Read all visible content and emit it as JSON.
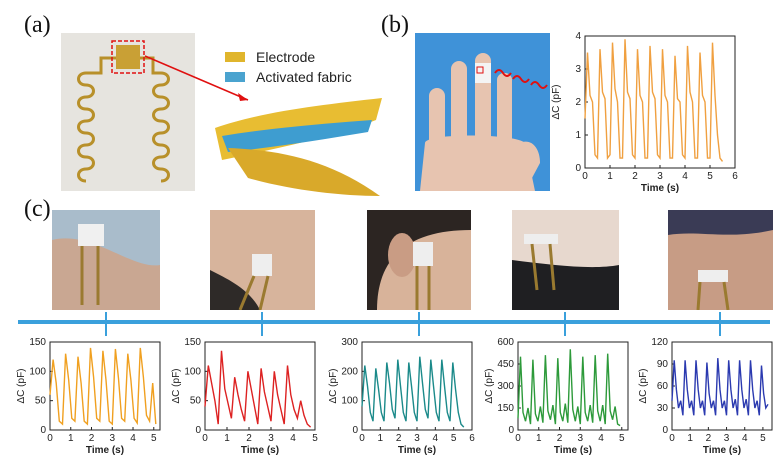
{
  "panels": {
    "a": "(a)",
    "b": "(b)",
    "c": "(c)"
  },
  "legend": {
    "electrode": "Electrode",
    "fabric": "Activated fabric"
  },
  "colors": {
    "electrode": "#e0b52c",
    "fabric": "#4aa3cf",
    "connector": "#3aa0dc",
    "trace_b": "#f0a040",
    "trace_c1": "#f0a020",
    "trace_c2": "#dd2222",
    "trace_c3": "#1b8a8a",
    "trace_c4": "#2d9a3a",
    "trace_c5": "#2b3ab0"
  },
  "chart_data": [
    {
      "id": "b",
      "type": "line",
      "ylabel": "ΔC (pF)",
      "xlabel": "Time (s)",
      "xlim": [
        0,
        6
      ],
      "ylim": [
        0,
        4
      ],
      "xticks": [
        "0",
        "1",
        "2",
        "3",
        "4",
        "5",
        "6"
      ],
      "yticks": [
        "0",
        "1",
        "2",
        "3",
        "4"
      ],
      "series": [
        {
          "color": "#f0a040",
          "x": [
            0,
            0.1,
            0.2,
            0.3,
            0.4,
            0.5,
            0.6,
            0.7,
            0.8,
            0.9,
            1.0,
            1.1,
            1.2,
            1.3,
            1.4,
            1.5,
            1.6,
            1.7,
            1.8,
            1.9,
            2.0,
            2.1,
            2.2,
            2.3,
            2.4,
            2.5,
            2.6,
            2.7,
            2.8,
            2.9,
            3.0,
            3.1,
            3.2,
            3.3,
            3.4,
            3.5,
            3.6,
            3.7,
            3.8,
            3.9,
            4.0,
            4.1,
            4.2,
            4.3,
            4.4,
            4.5,
            4.6,
            4.7,
            4.8,
            4.9,
            5.0,
            5.1,
            5.2,
            5.3,
            5.4,
            5.5
          ],
          "y": [
            1.5,
            3.5,
            2.2,
            2.0,
            0.4,
            0.3,
            3.6,
            2.3,
            2.1,
            0.3,
            0.4,
            3.8,
            2.4,
            2.0,
            0.3,
            0.3,
            3.9,
            2.3,
            2.1,
            0.4,
            0.3,
            3.6,
            2.2,
            2.0,
            0.3,
            0.3,
            3.7,
            2.3,
            2.1,
            0.4,
            0.3,
            3.6,
            2.2,
            2.0,
            0.3,
            0.3,
            3.4,
            2.1,
            2.0,
            0.4,
            0.3,
            3.7,
            2.3,
            2.0,
            0.3,
            0.3,
            3.5,
            2.2,
            2.0,
            0.3,
            0.3,
            3.8,
            2.2,
            1.0,
            0.3,
            0.2
          ]
        }
      ]
    },
    {
      "id": "c1",
      "type": "line",
      "ylabel": "ΔC (pF)",
      "xlabel": "Time (s)",
      "xlim": [
        0,
        5.3
      ],
      "ylim": [
        0,
        150
      ],
      "xticks": [
        "0",
        "1",
        "2",
        "3",
        "4",
        "5"
      ],
      "yticks": [
        "0",
        "50",
        "100",
        "150"
      ],
      "series": [
        {
          "color": "#f0a020",
          "x": [
            0,
            0.15,
            0.3,
            0.45,
            0.6,
            0.75,
            0.9,
            1.05,
            1.2,
            1.35,
            1.5,
            1.65,
            1.8,
            1.95,
            2.1,
            2.25,
            2.4,
            2.55,
            2.7,
            2.85,
            3.0,
            3.15,
            3.3,
            3.45,
            3.6,
            3.75,
            3.9,
            4.05,
            4.2,
            4.35,
            4.5,
            4.65,
            4.8,
            4.95,
            5.1
          ],
          "y": [
            60,
            120,
            80,
            15,
            10,
            130,
            85,
            20,
            15,
            125,
            80,
            15,
            10,
            140,
            90,
            20,
            15,
            135,
            85,
            15,
            10,
            138,
            88,
            20,
            15,
            130,
            85,
            20,
            12,
            140,
            90,
            25,
            15,
            80,
            10
          ]
        }
      ]
    },
    {
      "id": "c2",
      "type": "line",
      "ylabel": "ΔC (pF)",
      "xlabel": "Time (s)",
      "xlim": [
        0,
        5
      ],
      "ylim": [
        0,
        150
      ],
      "xticks": [
        "0",
        "1",
        "2",
        "3",
        "4",
        "5"
      ],
      "yticks": [
        "0",
        "50",
        "100",
        "150"
      ],
      "series": [
        {
          "color": "#dd2222",
          "x": [
            0,
            0.15,
            0.3,
            0.45,
            0.6,
            0.75,
            0.9,
            1.05,
            1.2,
            1.35,
            1.5,
            1.65,
            1.8,
            1.95,
            2.1,
            2.25,
            2.4,
            2.55,
            2.7,
            2.85,
            3.0,
            3.15,
            3.3,
            3.45,
            3.6,
            3.75,
            3.9,
            4.05,
            4.2,
            4.35,
            4.5,
            4.65,
            4.8
          ],
          "y": [
            40,
            110,
            80,
            50,
            10,
            135,
            70,
            45,
            20,
            90,
            60,
            35,
            15,
            100,
            70,
            40,
            10,
            105,
            65,
            40,
            15,
            100,
            60,
            35,
            10,
            110,
            60,
            35,
            20,
            50,
            25,
            10,
            5
          ]
        }
      ]
    },
    {
      "id": "c3",
      "type": "line",
      "ylabel": "ΔC (pF)",
      "xlabel": "Time (s)",
      "xlim": [
        0,
        6
      ],
      "ylim": [
        0,
        300
      ],
      "xticks": [
        "0",
        "1",
        "2",
        "3",
        "4",
        "5",
        "6"
      ],
      "yticks": [
        "0",
        "100",
        "200",
        "300"
      ],
      "series": [
        {
          "color": "#1b8a8a",
          "x": [
            0,
            0.15,
            0.3,
            0.45,
            0.6,
            0.75,
            0.9,
            1.05,
            1.2,
            1.35,
            1.5,
            1.65,
            1.8,
            1.95,
            2.1,
            2.25,
            2.4,
            2.55,
            2.7,
            2.85,
            3.0,
            3.15,
            3.3,
            3.45,
            3.6,
            3.75,
            3.9,
            4.05,
            4.2,
            4.35,
            4.5,
            4.65,
            4.8,
            4.95,
            5.1,
            5.25,
            5.4,
            5.55
          ],
          "y": [
            80,
            220,
            150,
            60,
            30,
            210,
            140,
            60,
            30,
            230,
            160,
            70,
            40,
            240,
            150,
            60,
            30,
            230,
            150,
            60,
            30,
            250,
            160,
            70,
            40,
            240,
            150,
            60,
            30,
            240,
            150,
            60,
            30,
            230,
            140,
            60,
            20,
            10
          ]
        }
      ]
    },
    {
      "id": "c4",
      "type": "line",
      "ylabel": "ΔC (pF)",
      "xlabel": "Time (s)",
      "xlim": [
        0,
        5.3
      ],
      "ylim": [
        0,
        600
      ],
      "xticks": [
        "0",
        "1",
        "2",
        "3",
        "4",
        "5"
      ],
      "yticks": [
        "0",
        "150",
        "300",
        "450",
        "600"
      ],
      "series": [
        {
          "color": "#2d9a3a",
          "x": [
            0,
            0.12,
            0.24,
            0.36,
            0.48,
            0.6,
            0.72,
            0.84,
            0.96,
            1.08,
            1.2,
            1.32,
            1.44,
            1.56,
            1.68,
            1.8,
            1.92,
            2.04,
            2.16,
            2.28,
            2.4,
            2.52,
            2.64,
            2.76,
            2.88,
            3.0,
            3.12,
            3.24,
            3.36,
            3.48,
            3.6,
            3.72,
            3.84,
            3.96,
            4.08,
            4.2,
            4.32,
            4.44,
            4.56,
            4.68,
            4.8,
            4.92
          ],
          "y": [
            80,
            500,
            120,
            60,
            150,
            40,
            480,
            110,
            60,
            160,
            50,
            510,
            130,
            70,
            170,
            40,
            490,
            120,
            60,
            180,
            50,
            550,
            140,
            60,
            160,
            40,
            500,
            120,
            60,
            170,
            50,
            510,
            130,
            60,
            170,
            40,
            520,
            130,
            70,
            160,
            40,
            30
          ]
        }
      ]
    },
    {
      "id": "c5",
      "type": "line",
      "ylabel": "ΔC (pF)",
      "xlabel": "Time (s)",
      "xlim": [
        0,
        5.5
      ],
      "ylim": [
        0,
        120
      ],
      "xticks": [
        "0",
        "1",
        "2",
        "3",
        "4",
        "5"
      ],
      "yticks": [
        "0",
        "30",
        "60",
        "90",
        "120"
      ],
      "series": [
        {
          "color": "#2b3ab0",
          "x": [
            0,
            0.12,
            0.24,
            0.36,
            0.48,
            0.6,
            0.72,
            0.84,
            0.96,
            1.08,
            1.2,
            1.32,
            1.44,
            1.56,
            1.68,
            1.8,
            1.92,
            2.04,
            2.16,
            2.28,
            2.4,
            2.52,
            2.64,
            2.76,
            2.88,
            3.0,
            3.12,
            3.24,
            3.36,
            3.48,
            3.6,
            3.72,
            3.84,
            3.96,
            4.08,
            4.2,
            4.32,
            4.44,
            4.56,
            4.68,
            4.8,
            4.92,
            5.04,
            5.16,
            5.28
          ],
          "y": [
            40,
            95,
            55,
            30,
            40,
            20,
            95,
            55,
            30,
            40,
            20,
            95,
            55,
            30,
            40,
            20,
            92,
            50,
            30,
            40,
            20,
            98,
            55,
            30,
            40,
            20,
            95,
            55,
            30,
            42,
            20,
            95,
            55,
            30,
            42,
            20,
            95,
            55,
            30,
            40,
            20,
            88,
            50,
            30,
            35
          ]
        }
      ]
    }
  ]
}
